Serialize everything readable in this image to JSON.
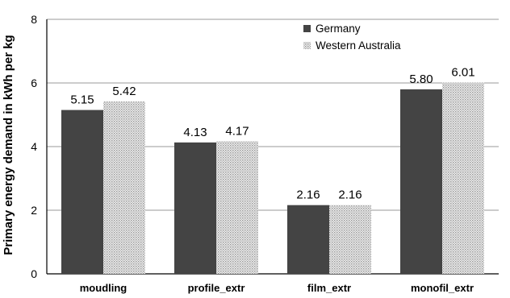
{
  "chart_data": {
    "type": "bar",
    "title": "",
    "xlabel": "",
    "ylabel": "Primary energy demand in kWh per kg",
    "ylim": [
      0,
      8
    ],
    "yticks": [
      0,
      2,
      4,
      6,
      8
    ],
    "grid": true,
    "legend_position": "top-right",
    "categories": [
      "moudling",
      "profile_extr",
      "film_extr",
      "monofil_extr"
    ],
    "series": [
      {
        "name": "Germany",
        "values": [
          5.15,
          4.13,
          2.16,
          5.8
        ],
        "labels": [
          "5.15",
          "4.13",
          "2.16",
          "5.80"
        ],
        "color": "#444444",
        "pattern": "solid"
      },
      {
        "name": "Western Australia",
        "values": [
          5.42,
          4.17,
          2.16,
          6.01
        ],
        "labels": [
          "5.42",
          "4.17",
          "2.16",
          "6.01"
        ],
        "color": "#d6d6d6",
        "pattern": "dotted"
      }
    ]
  }
}
